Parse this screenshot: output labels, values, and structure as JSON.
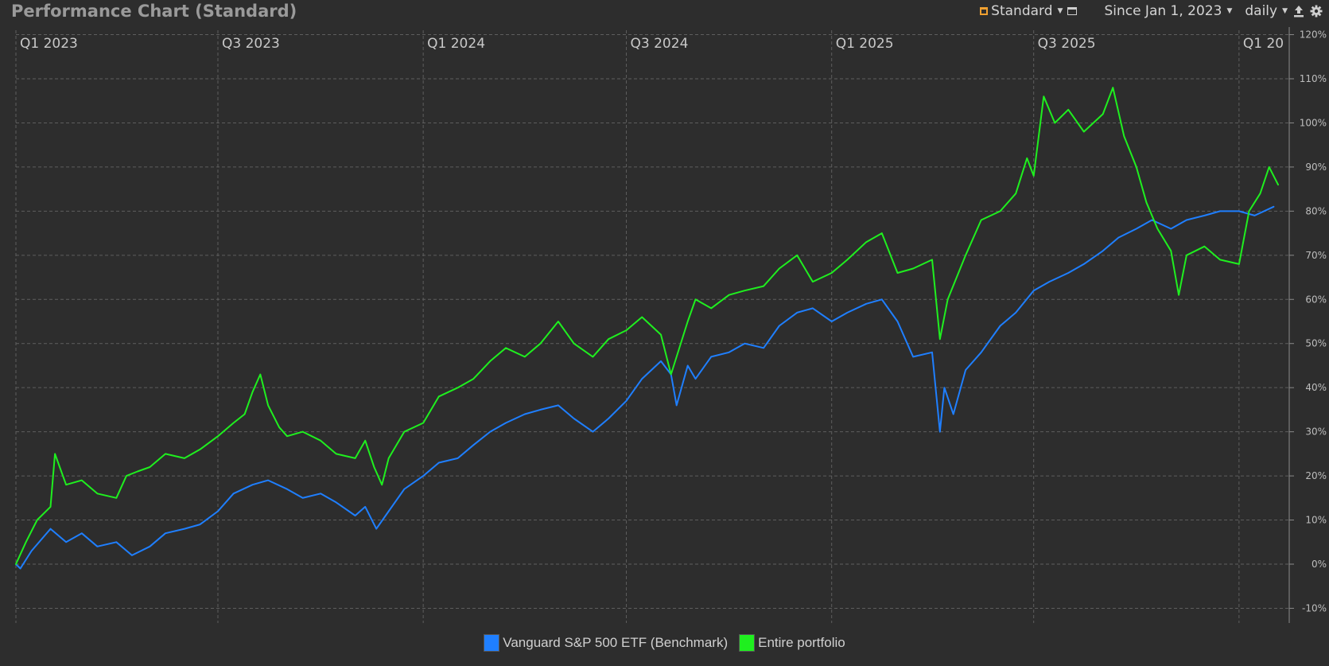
{
  "header": {
    "title": "Performance Chart (Standard)",
    "view_label": "Standard",
    "range_label": "Since Jan 1, 2023",
    "interval_label": "daily"
  },
  "icons": {
    "view": "standard-view-icon",
    "window": "window-icon",
    "export": "export-icon",
    "settings": "gear-icon"
  },
  "colors": {
    "background": "#2d2d2d",
    "benchmark": "#1f7fff",
    "portfolio": "#1fef1f",
    "grid": "#5e5e5e"
  },
  "chart_data": {
    "type": "line",
    "x_axis": {
      "tick_labels": [
        "Q1 2023",
        "Q3 2023",
        "Q1 2024",
        "Q3 2024",
        "Q1 2025",
        "Q3 2025",
        "Q1 20"
      ],
      "tick_dates": [
        "2023-01-01",
        "2023-07-01",
        "2024-01-01",
        "2024-07-01",
        "2025-01-01",
        "2025-07-01",
        "2026-01-01"
      ],
      "range": [
        "2023-01-01",
        "2026-02-15"
      ],
      "position": "top"
    },
    "y_axis": {
      "ticks": [
        120,
        110,
        100,
        90,
        80,
        70,
        60,
        50,
        40,
        30,
        20,
        10,
        0,
        -10
      ],
      "tick_suffix": "%",
      "range": [
        -11,
        121
      ],
      "position": "right"
    },
    "grid": true,
    "legend": "bottom-center",
    "series": [
      {
        "name": "Vanguard S&P 500 ETF (Benchmark)",
        "color": "#1f7fff",
        "points": [
          [
            "2023-01-01",
            0
          ],
          [
            "2023-01-05",
            -1
          ],
          [
            "2023-01-15",
            3
          ],
          [
            "2023-02-01",
            8
          ],
          [
            "2023-02-15",
            5
          ],
          [
            "2023-03-01",
            7
          ],
          [
            "2023-03-15",
            4
          ],
          [
            "2023-04-01",
            5
          ],
          [
            "2023-04-15",
            2
          ],
          [
            "2023-05-01",
            4
          ],
          [
            "2023-05-15",
            7
          ],
          [
            "2023-06-01",
            8
          ],
          [
            "2023-06-15",
            9
          ],
          [
            "2023-07-01",
            12
          ],
          [
            "2023-07-15",
            16
          ],
          [
            "2023-08-01",
            18
          ],
          [
            "2023-08-15",
            19
          ],
          [
            "2023-09-01",
            17
          ],
          [
            "2023-09-15",
            15
          ],
          [
            "2023-10-01",
            16
          ],
          [
            "2023-10-15",
            14
          ],
          [
            "2023-11-01",
            11
          ],
          [
            "2023-11-10",
            13
          ],
          [
            "2023-11-20",
            8
          ],
          [
            "2023-12-01",
            12
          ],
          [
            "2023-12-15",
            17
          ],
          [
            "2024-01-01",
            20
          ],
          [
            "2024-01-15",
            23
          ],
          [
            "2024-02-01",
            24
          ],
          [
            "2024-02-15",
            27
          ],
          [
            "2024-03-01",
            30
          ],
          [
            "2024-03-15",
            32
          ],
          [
            "2024-04-01",
            34
          ],
          [
            "2024-04-15",
            35
          ],
          [
            "2024-05-01",
            36
          ],
          [
            "2024-05-15",
            33
          ],
          [
            "2024-06-01",
            30
          ],
          [
            "2024-06-15",
            33
          ],
          [
            "2024-07-01",
            37
          ],
          [
            "2024-07-15",
            42
          ],
          [
            "2024-08-01",
            46
          ],
          [
            "2024-08-10",
            43
          ],
          [
            "2024-08-15",
            36
          ],
          [
            "2024-08-25",
            45
          ],
          [
            "2024-09-01",
            42
          ],
          [
            "2024-09-15",
            47
          ],
          [
            "2024-10-01",
            48
          ],
          [
            "2024-10-15",
            50
          ],
          [
            "2024-11-01",
            49
          ],
          [
            "2024-11-15",
            54
          ],
          [
            "2024-12-01",
            57
          ],
          [
            "2024-12-15",
            58
          ],
          [
            "2025-01-01",
            55
          ],
          [
            "2025-01-15",
            57
          ],
          [
            "2025-02-01",
            59
          ],
          [
            "2025-02-15",
            60
          ],
          [
            "2025-03-01",
            55
          ],
          [
            "2025-03-15",
            47
          ],
          [
            "2025-04-01",
            48
          ],
          [
            "2025-04-08",
            30
          ],
          [
            "2025-04-12",
            40
          ],
          [
            "2025-04-20",
            34
          ],
          [
            "2025-05-01",
            44
          ],
          [
            "2025-05-15",
            48
          ],
          [
            "2025-06-01",
            54
          ],
          [
            "2025-06-15",
            57
          ],
          [
            "2025-07-01",
            62
          ],
          [
            "2025-07-15",
            64
          ],
          [
            "2025-08-01",
            66
          ],
          [
            "2025-08-15",
            68
          ],
          [
            "2025-09-01",
            71
          ],
          [
            "2025-09-15",
            74
          ],
          [
            "2025-10-01",
            76
          ],
          [
            "2025-10-15",
            78
          ],
          [
            "2025-11-01",
            76
          ],
          [
            "2025-11-15",
            78
          ],
          [
            "2025-12-01",
            79
          ],
          [
            "2025-12-15",
            80
          ],
          [
            "2026-01-01",
            80
          ],
          [
            "2026-01-15",
            79
          ],
          [
            "2026-02-01",
            81
          ]
        ]
      },
      {
        "name": "Entire portfolio",
        "color": "#1fef1f",
        "points": [
          [
            "2023-01-01",
            0
          ],
          [
            "2023-01-10",
            5
          ],
          [
            "2023-01-20",
            10
          ],
          [
            "2023-02-01",
            13
          ],
          [
            "2023-02-05",
            25
          ],
          [
            "2023-02-15",
            18
          ],
          [
            "2023-03-01",
            19
          ],
          [
            "2023-03-15",
            16
          ],
          [
            "2023-04-01",
            15
          ],
          [
            "2023-04-10",
            20
          ],
          [
            "2023-04-20",
            21
          ],
          [
            "2023-05-01",
            22
          ],
          [
            "2023-05-15",
            25
          ],
          [
            "2023-06-01",
            24
          ],
          [
            "2023-06-15",
            26
          ],
          [
            "2023-07-01",
            29
          ],
          [
            "2023-07-15",
            32
          ],
          [
            "2023-07-25",
            34
          ],
          [
            "2023-08-01",
            39
          ],
          [
            "2023-08-08",
            43
          ],
          [
            "2023-08-15",
            36
          ],
          [
            "2023-08-25",
            31
          ],
          [
            "2023-09-01",
            29
          ],
          [
            "2023-09-15",
            30
          ],
          [
            "2023-10-01",
            28
          ],
          [
            "2023-10-15",
            25
          ],
          [
            "2023-11-01",
            24
          ],
          [
            "2023-11-10",
            28
          ],
          [
            "2023-11-18",
            22
          ],
          [
            "2023-11-25",
            18
          ],
          [
            "2023-12-01",
            24
          ],
          [
            "2023-12-15",
            30
          ],
          [
            "2024-01-01",
            32
          ],
          [
            "2024-01-15",
            38
          ],
          [
            "2024-02-01",
            40
          ],
          [
            "2024-02-15",
            42
          ],
          [
            "2024-03-01",
            46
          ],
          [
            "2024-03-15",
            49
          ],
          [
            "2024-04-01",
            47
          ],
          [
            "2024-04-15",
            50
          ],
          [
            "2024-05-01",
            55
          ],
          [
            "2024-05-15",
            50
          ],
          [
            "2024-06-01",
            47
          ],
          [
            "2024-06-15",
            51
          ],
          [
            "2024-07-01",
            53
          ],
          [
            "2024-07-15",
            56
          ],
          [
            "2024-08-01",
            52
          ],
          [
            "2024-08-10",
            43
          ],
          [
            "2024-08-25",
            55
          ],
          [
            "2024-09-01",
            60
          ],
          [
            "2024-09-15",
            58
          ],
          [
            "2024-10-01",
            61
          ],
          [
            "2024-10-15",
            62
          ],
          [
            "2024-11-01",
            63
          ],
          [
            "2024-11-15",
            67
          ],
          [
            "2024-12-01",
            70
          ],
          [
            "2024-12-15",
            64
          ],
          [
            "2025-01-01",
            66
          ],
          [
            "2025-01-15",
            69
          ],
          [
            "2025-02-01",
            73
          ],
          [
            "2025-02-15",
            75
          ],
          [
            "2025-03-01",
            66
          ],
          [
            "2025-03-15",
            67
          ],
          [
            "2025-04-01",
            69
          ],
          [
            "2025-04-08",
            51
          ],
          [
            "2025-04-15",
            60
          ],
          [
            "2025-05-01",
            70
          ],
          [
            "2025-05-15",
            78
          ],
          [
            "2025-06-01",
            80
          ],
          [
            "2025-06-15",
            84
          ],
          [
            "2025-06-25",
            92
          ],
          [
            "2025-07-01",
            88
          ],
          [
            "2025-07-10",
            106
          ],
          [
            "2025-07-20",
            100
          ],
          [
            "2025-08-01",
            103
          ],
          [
            "2025-08-15",
            98
          ],
          [
            "2025-09-01",
            102
          ],
          [
            "2025-09-10",
            108
          ],
          [
            "2025-09-20",
            97
          ],
          [
            "2025-10-01",
            90
          ],
          [
            "2025-10-10",
            82
          ],
          [
            "2025-10-20",
            76
          ],
          [
            "2025-11-01",
            71
          ],
          [
            "2025-11-08",
            61
          ],
          [
            "2025-11-15",
            70
          ],
          [
            "2025-12-01",
            72
          ],
          [
            "2025-12-15",
            69
          ],
          [
            "2026-01-01",
            68
          ],
          [
            "2026-01-10",
            80
          ],
          [
            "2026-01-20",
            84
          ],
          [
            "2026-01-28",
            90
          ],
          [
            "2026-02-05",
            86
          ]
        ]
      }
    ]
  }
}
